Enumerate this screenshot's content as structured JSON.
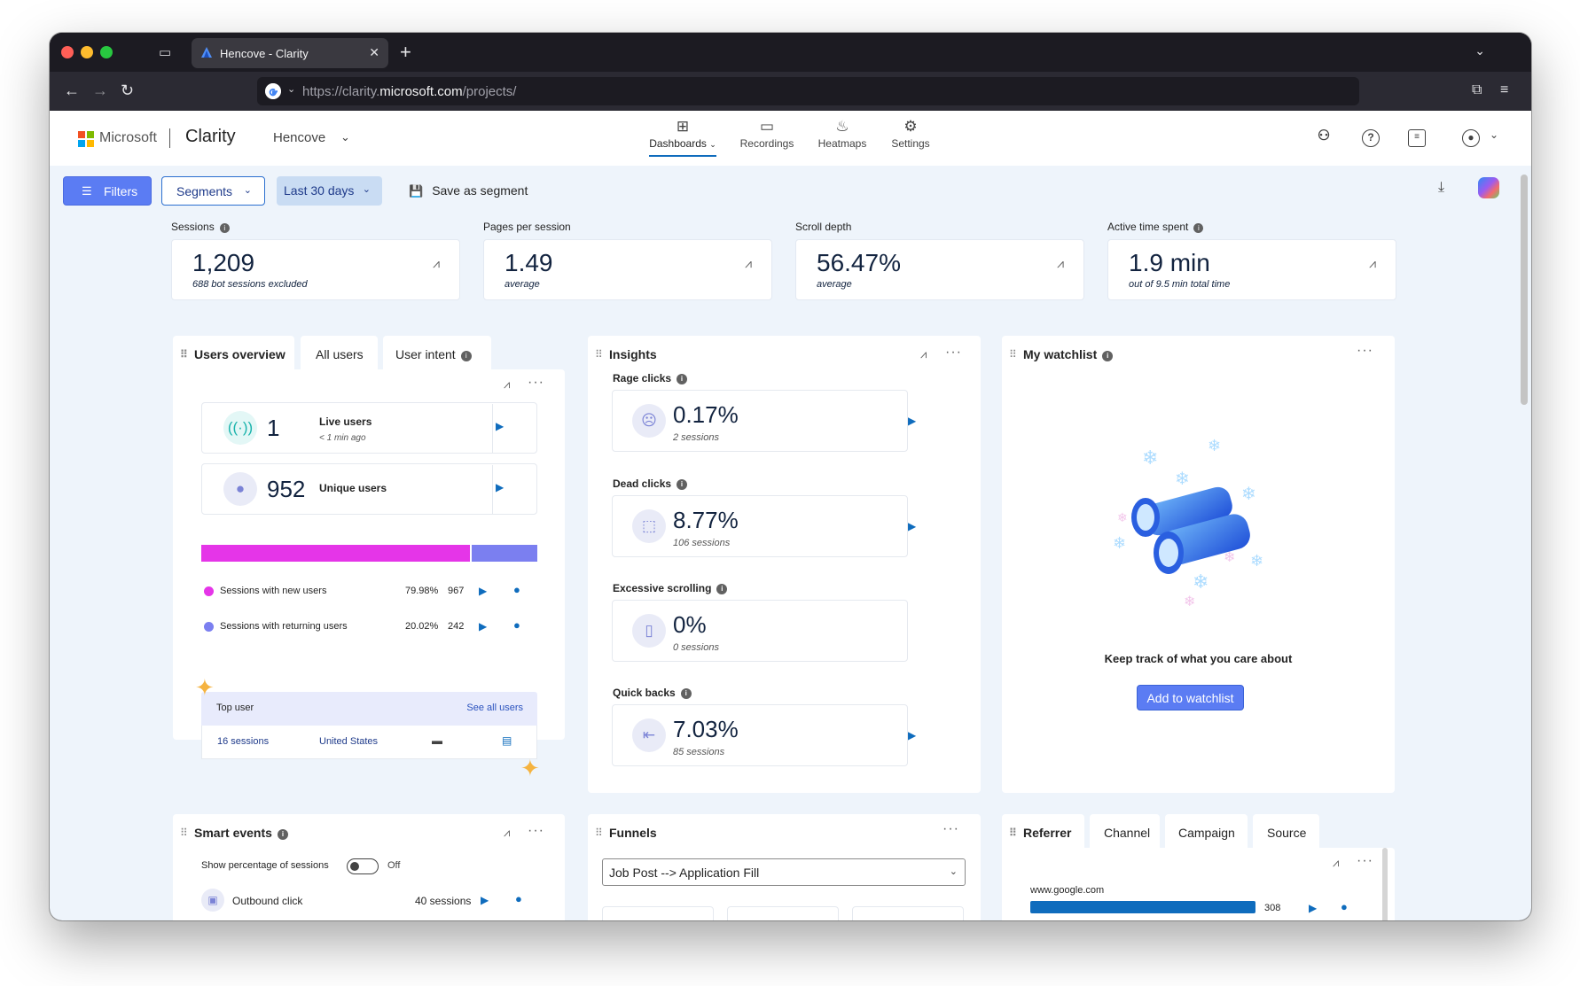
{
  "browser": {
    "tab_title": "Hencove - Clarity",
    "url_prefix": "https://clarity.",
    "url_domain": "microsoft.com",
    "url_path": "/projects/"
  },
  "header": {
    "brand": "Microsoft",
    "product": "Clarity",
    "project": "Hencove",
    "nav": [
      {
        "label": "Dashboards",
        "icon": "dashboard-icon",
        "active": true
      },
      {
        "label": "Recordings",
        "icon": "video-icon",
        "active": false
      },
      {
        "label": "Heatmaps",
        "icon": "flame-icon",
        "active": false
      },
      {
        "label": "Settings",
        "icon": "gear-icon",
        "active": false
      }
    ],
    "ms_colors": [
      "#f25022",
      "#7fba00",
      "#00a4ef",
      "#ffb900"
    ]
  },
  "toolbar": {
    "filters": "Filters",
    "segments": "Segments",
    "date_range": "Last 30 days",
    "save_segment": "Save as segment"
  },
  "metrics": [
    {
      "label": "Sessions",
      "value": "1,209",
      "sub": "688 bot sessions excluded",
      "info": true
    },
    {
      "label": "Pages per session",
      "value": "1.49",
      "sub": "average",
      "info": false
    },
    {
      "label": "Scroll depth",
      "value": "56.47%",
      "sub": "average",
      "info": false
    },
    {
      "label": "Active time spent",
      "value": "1.9 min",
      "sub": "out of 9.5 min total time",
      "info": true
    }
  ],
  "users_panel": {
    "tabs": [
      "Users overview",
      "All users",
      "User intent"
    ],
    "live": {
      "value": "1",
      "label": "Live users",
      "sub": "< 1 min ago"
    },
    "unique": {
      "value": "952",
      "label": "Unique users"
    },
    "bar": {
      "new_fraction": 0.7998,
      "new_color": "#e535e8",
      "returning_color": "#7b7ff0"
    },
    "legend": [
      {
        "label": "Sessions with new users",
        "pct": "79.98%",
        "count": "967",
        "color": "#e535e8"
      },
      {
        "label": "Sessions with returning users",
        "pct": "20.02%",
        "count": "242",
        "color": "#7b7ff0"
      }
    ],
    "top_user": {
      "title": "Top user",
      "see_all": "See all users",
      "sessions": "16 sessions",
      "country": "United States"
    }
  },
  "insights": {
    "title": "Insights",
    "items": [
      {
        "label": "Rage clicks",
        "value": "0.17%",
        "sub": "2 sessions",
        "icon": "angry-face-icon"
      },
      {
        "label": "Dead clicks",
        "value": "8.77%",
        "sub": "106 sessions",
        "icon": "cursor-click-icon"
      },
      {
        "label": "Excessive scrolling",
        "value": "0%",
        "sub": "0 sessions",
        "icon": "scroll-icon"
      },
      {
        "label": "Quick backs",
        "value": "7.03%",
        "sub": "85 sessions",
        "icon": "back-arrow-icon"
      }
    ]
  },
  "watchlist": {
    "title": "My watchlist",
    "message": "Keep track of what you care about",
    "button": "Add to watchlist"
  },
  "smart_events": {
    "title": "Smart events",
    "toggle_label": "Show percentage of sessions",
    "toggle_state": "Off",
    "first_event": {
      "label": "Outbound click",
      "count": "40 sessions"
    }
  },
  "funnels": {
    "title": "Funnels",
    "selected": "Job Post --> Application Fill"
  },
  "referrer": {
    "tabs": [
      "Referrer",
      "Channel",
      "Campaign",
      "Source"
    ],
    "first_row": {
      "label": "www.google.com",
      "value": "308"
    }
  }
}
